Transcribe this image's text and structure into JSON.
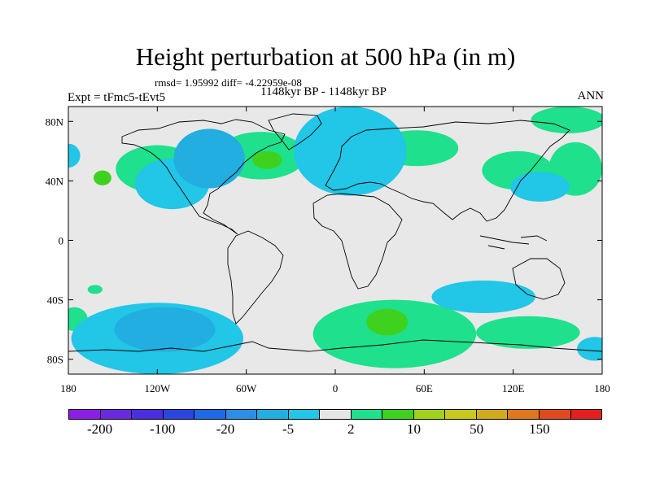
{
  "title": "Height perturbation at 500 hPa (in m)",
  "stats_line": "rmsd= 1.95992 diff= -4.22959e-08",
  "period": "1148kyr BP - 1148kyr BP",
  "experiment": "Expt = tFmc5-tEvt5",
  "season": "ANN",
  "map": {
    "projection": "cylindrical equidistant",
    "lon_range": [
      -180,
      180
    ],
    "lat_range": [
      -90,
      90
    ],
    "lat_ticks": [
      {
        "value": 80,
        "label": "80N"
      },
      {
        "value": 40,
        "label": "40N"
      },
      {
        "value": 0,
        "label": "0"
      },
      {
        "value": -40,
        "label": "40S"
      },
      {
        "value": -80,
        "label": "80S"
      }
    ],
    "lon_ticks": [
      {
        "value": -180,
        "label": "180"
      },
      {
        "value": -120,
        "label": "120W"
      },
      {
        "value": -60,
        "label": "60W"
      },
      {
        "value": 0,
        "label": "0"
      },
      {
        "value": 60,
        "label": "60E"
      },
      {
        "value": 120,
        "label": "120E"
      },
      {
        "value": 180,
        "label": "180"
      }
    ],
    "background_color": "#e8e8e8"
  },
  "colorbar": {
    "colors": [
      "#8c1fe6",
      "#6a28e0",
      "#4a2ee0",
      "#2a45e0",
      "#1f6ae6",
      "#2c8ee6",
      "#22aee0",
      "#22c6e6",
      "#e6e6e6",
      "#1fe08c",
      "#3ed21e",
      "#a0d21e",
      "#c8c81e",
      "#d2aa1e",
      "#e0781e",
      "#e04a1e",
      "#e61e1e"
    ],
    "labels": [
      "-200",
      "-100",
      "-20",
      "-5",
      "2",
      "10",
      "50",
      "150"
    ]
  },
  "field_regions": [
    {
      "kind": "positive",
      "level": 1,
      "lon": -120,
      "lat": 48,
      "rx": 28,
      "ry": 16
    },
    {
      "kind": "positive",
      "level": 2,
      "lon": -157,
      "lat": 42,
      "rx": 6,
      "ry": 5
    },
    {
      "kind": "positive",
      "level": 1,
      "lon": -50,
      "lat": 57,
      "rx": 30,
      "ry": 16
    },
    {
      "kind": "positive",
      "level": 2,
      "lon": -46,
      "lat": 54,
      "rx": 10,
      "ry": 6
    },
    {
      "kind": "positive",
      "level": 1,
      "lon": 55,
      "lat": 62,
      "rx": 28,
      "ry": 12
    },
    {
      "kind": "positive",
      "level": 1,
      "lon": 123,
      "lat": 47,
      "rx": 24,
      "ry": 13
    },
    {
      "kind": "positive",
      "level": 1,
      "lon": 157,
      "lat": 81,
      "rx": 25,
      "ry": 9
    },
    {
      "kind": "positive",
      "level": 1,
      "lon": 162,
      "lat": 48,
      "rx": 18,
      "ry": 18
    },
    {
      "kind": "positive",
      "level": 1,
      "lon": -176,
      "lat": -53,
      "rx": 9,
      "ry": 8
    },
    {
      "kind": "positive",
      "level": 1,
      "lon": -162,
      "lat": -33,
      "rx": 5,
      "ry": 3
    },
    {
      "kind": "positive",
      "level": 1,
      "lon": 40,
      "lat": -63,
      "rx": 55,
      "ry": 23
    },
    {
      "kind": "positive",
      "level": 2,
      "lon": 35,
      "lat": -55,
      "rx": 14,
      "ry": 9
    },
    {
      "kind": "positive",
      "level": 1,
      "lon": 130,
      "lat": -62,
      "rx": 35,
      "ry": 11
    },
    {
      "kind": "negative",
      "level": 1,
      "lon": -110,
      "lat": 38,
      "rx": 25,
      "ry": 17
    },
    {
      "kind": "negative",
      "level": 2,
      "lon": -85,
      "lat": 55,
      "rx": 24,
      "ry": 20
    },
    {
      "kind": "negative",
      "level": 1,
      "lon": 10,
      "lat": 60,
      "rx": 38,
      "ry": 30
    },
    {
      "kind": "negative",
      "level": 1,
      "lon": 138,
      "lat": 36,
      "rx": 20,
      "ry": 10
    },
    {
      "kind": "negative",
      "level": 1,
      "lon": -180,
      "lat": 57,
      "rx": 8,
      "ry": 8
    },
    {
      "kind": "negative",
      "level": 1,
      "lon": -120,
      "lat": -66,
      "rx": 58,
      "ry": 24
    },
    {
      "kind": "negative",
      "level": 2,
      "lon": -115,
      "lat": -60,
      "rx": 34,
      "ry": 15
    },
    {
      "kind": "negative",
      "level": 1,
      "lon": 100,
      "lat": -38,
      "rx": 35,
      "ry": 11
    },
    {
      "kind": "negative",
      "level": 1,
      "lon": 175,
      "lat": -73,
      "rx": 12,
      "ry": 8
    }
  ]
}
